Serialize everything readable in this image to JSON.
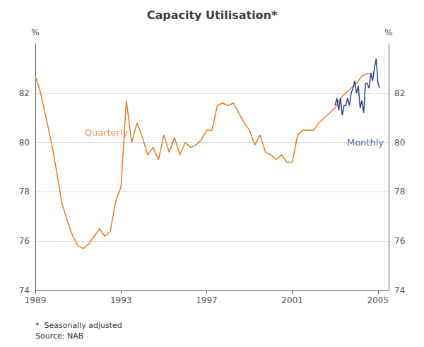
{
  "chart_data": {
    "type": "line",
    "title": "Capacity Utilisation*",
    "ylabel": "%",
    "y2label": "%",
    "footnote": "*  Seasonally adjusted\nSource: NAB",
    "xlim": [
      1989.0,
      2005.5
    ],
    "xticks": [
      1989,
      1993,
      1997,
      2001,
      2005
    ],
    "ylim": [
      74,
      84.0
    ],
    "yticks": [
      74,
      76,
      78,
      80,
      82
    ],
    "y2lim": [
      74,
      84.0
    ],
    "y2ticks": [
      74,
      76,
      78,
      80,
      82
    ],
    "grid": true,
    "series": [
      {
        "color": "#E87722",
        "x": [
          1989.0,
          1989.25,
          1989.5,
          1989.75,
          1990.0,
          1990.25,
          1990.5,
          1990.75,
          1991.0,
          1991.25,
          1991.5,
          1991.75,
          1992.0,
          1992.25,
          1992.5,
          1992.75,
          1993.0,
          1993.25,
          1993.5,
          1993.75,
          1994.0,
          1994.25,
          1994.5,
          1994.75,
          1995.0,
          1995.25,
          1995.5,
          1995.75,
          1996.0,
          1996.25,
          1996.5,
          1996.75,
          1997.0,
          1997.25,
          1997.5,
          1997.75,
          1998.0,
          1998.25,
          1998.5,
          1998.75,
          1999.0,
          1999.25,
          1999.5,
          1999.75,
          2000.0,
          2000.25,
          2000.5,
          2000.75,
          2001.0,
          2001.25,
          2001.5,
          2001.75,
          2002.0,
          2002.25,
          2002.5,
          2002.75,
          2003.0,
          2003.25,
          2003.5,
          2003.75,
          2004.0,
          2004.25,
          2004.5,
          2004.75
        ],
        "values": [
          82.7,
          82.0,
          81.0,
          80.0,
          78.8,
          77.5,
          76.8,
          76.2,
          75.8,
          75.7,
          75.9,
          76.2,
          76.5,
          76.2,
          76.4,
          77.6,
          78.2,
          81.7,
          80.0,
          80.8,
          80.2,
          79.5,
          79.8,
          79.3,
          80.3,
          79.6,
          80.2,
          79.5,
          80.0,
          79.8,
          79.9,
          80.1,
          80.5,
          80.5,
          81.5,
          81.6,
          81.5,
          81.6,
          81.2,
          80.8,
          80.5,
          79.9,
          80.3,
          79.6,
          79.5,
          79.3,
          79.5,
          79.2,
          79.2,
          80.3,
          80.5,
          80.5,
          80.5,
          80.8,
          81.0,
          81.2,
          81.4,
          81.8,
          82.0,
          82.2,
          82.4,
          82.7,
          82.8,
          82.8
        ]
      },
      {
        "color": "#2B3D8F",
        "x": [
          2003.0,
          2003.083,
          2003.167,
          2003.25,
          2003.333,
          2003.417,
          2003.5,
          2003.583,
          2003.667,
          2003.75,
          2003.833,
          2003.917,
          2004.0,
          2004.083,
          2004.167,
          2004.25,
          2004.333,
          2004.417,
          2004.5,
          2004.583,
          2004.667,
          2004.75,
          2004.833,
          2004.917,
          2005.0,
          2005.083
        ],
        "values": [
          81.5,
          81.8,
          81.3,
          81.8,
          81.1,
          81.5,
          81.5,
          81.8,
          81.5,
          82.0,
          82.2,
          82.5,
          82.0,
          82.3,
          81.4,
          81.7,
          81.2,
          82.4,
          82.4,
          82.2,
          82.8,
          82.5,
          83.0,
          83.4,
          82.4,
          82.2
        ]
      }
    ],
    "annotations": [
      {
        "text": "Quarterly",
        "x": 1991.3,
        "y": 80.4,
        "color": "#E87722"
      },
      {
        "text": "Monthly",
        "x": 2003.55,
        "y": 80.0,
        "color": "#2B3D8F"
      }
    ]
  }
}
